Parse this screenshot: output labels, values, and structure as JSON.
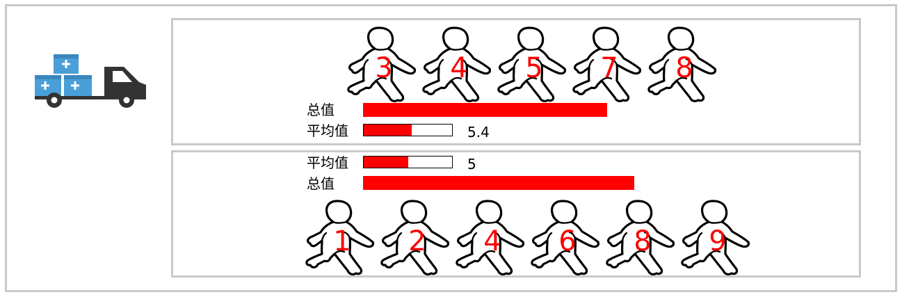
{
  "top_group": {
    "numbers": [
      "3",
      "4",
      "5",
      "7",
      "8"
    ],
    "total_label": "总值",
    "total_value": 27,
    "average_label": "平均值",
    "average_value": "5.4",
    "average_fraction": 0.54
  },
  "bottom_group": {
    "numbers": [
      "1",
      "2",
      "4",
      "6",
      "8",
      "9"
    ],
    "total_label": "总值",
    "total_value": 30,
    "average_label": "平均值",
    "average_value": "5",
    "average_fraction": 0.5
  },
  "colors": {
    "accent": "#ff0000",
    "border": "#c9c9c9",
    "truck": "#333333",
    "box": "#4a9fd8"
  },
  "icons": {
    "truck": "delivery-truck-icon",
    "person": "walking-person-icon"
  }
}
